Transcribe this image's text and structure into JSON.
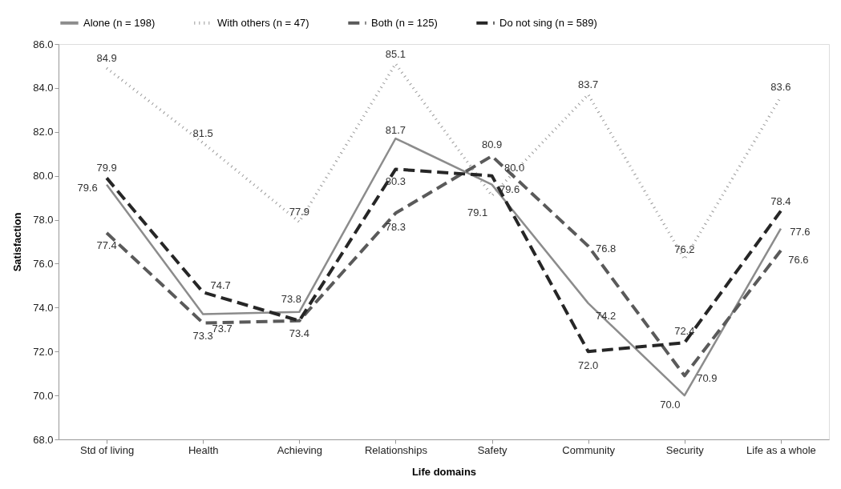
{
  "chart_data": {
    "type": "line",
    "xlabel": "Life domains",
    "ylabel": "Satisfaction",
    "categories": [
      "Std of living",
      "Health",
      "Achieving",
      "Relationships",
      "Safety",
      "Community",
      "Security",
      "Life as a whole"
    ],
    "series": [
      {
        "name": "Alone (n = 198)",
        "color": "#8c8c8c",
        "line_style": "solid",
        "values": [
          79.6,
          73.7,
          73.8,
          81.7,
          79.6,
          74.2,
          70.0,
          77.6
        ],
        "value_labels": [
          "79.6",
          "73.7",
          "73.8",
          "81.7",
          "79.6",
          "74.2",
          "70.0",
          "77.6"
        ]
      },
      {
        "name": "With others (n = 47)",
        "color": "#9a9a9a",
        "line_style": "dotted",
        "values": [
          84.9,
          81.5,
          77.9,
          85.1,
          79.1,
          83.7,
          76.2,
          83.6
        ],
        "value_labels": [
          "84.9",
          "81.5",
          "77.9",
          "85.1",
          "79.1",
          "83.7",
          "76.2",
          "83.6"
        ]
      },
      {
        "name": "Both (n = 125)",
        "color": "#5a5a5a",
        "line_style": "dashed",
        "values": [
          77.4,
          73.3,
          73.4,
          78.3,
          80.9,
          76.8,
          70.9,
          76.6
        ],
        "value_labels": [
          "77.4",
          "73.3",
          "73.4",
          "78.3",
          "80.9",
          "76.8",
          "70.9",
          "76.6"
        ]
      },
      {
        "name": "Do not sing (n = 589)",
        "color": "#262626",
        "line_style": "dashed",
        "values": [
          79.9,
          74.7,
          73.4,
          80.3,
          80.0,
          72.0,
          72.4,
          78.4
        ],
        "value_labels": [
          "79.9",
          "74.7",
          null,
          "80.3",
          "80.0",
          "72.0",
          "72.4",
          "78.4"
        ]
      }
    ],
    "ylim": [
      68.0,
      86.0
    ],
    "yticks": [
      {
        "value": 68,
        "label": "68.0"
      },
      {
        "value": 70,
        "label": "70.0"
      },
      {
        "value": 72,
        "label": "72.0"
      },
      {
        "value": 74,
        "label": "74.0"
      },
      {
        "value": 76,
        "label": "76.0"
      },
      {
        "value": 78,
        "label": "78.0"
      },
      {
        "value": 80,
        "label": "80.0"
      },
      {
        "value": 82,
        "label": "82.0"
      },
      {
        "value": 84,
        "label": "84.0"
      },
      {
        "value": 86,
        "label": "86.0"
      }
    ],
    "grid": false,
    "legend": "top",
    "marker": "none"
  }
}
